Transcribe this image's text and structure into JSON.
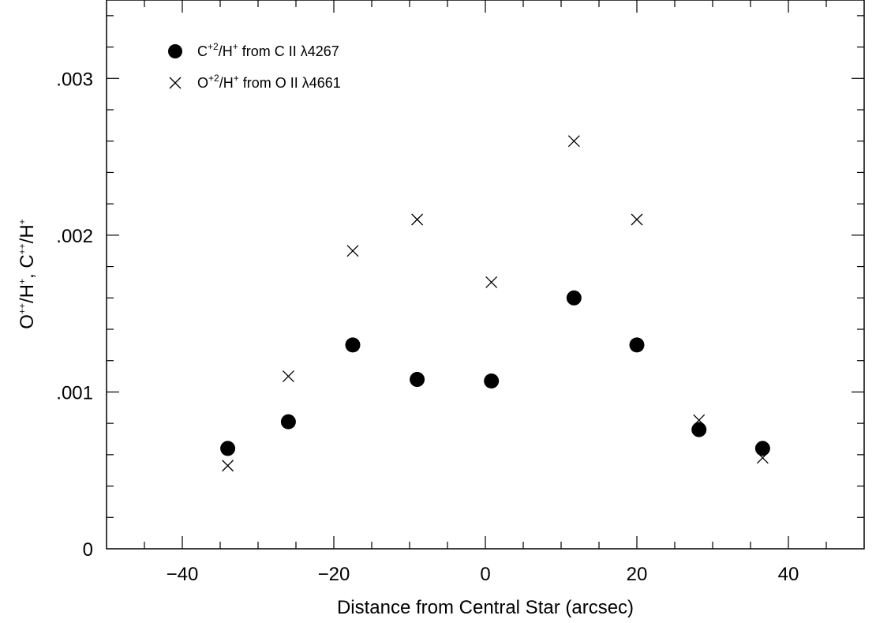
{
  "chart_data": {
    "type": "scatter",
    "title": "",
    "xlabel": "Distance from Central Star (arcsec)",
    "ylabel": {
      "prefix": "O",
      "sup1": "++",
      "mid1": "/H",
      "sup2": "+",
      "mid2": ", C",
      "sup3": "++",
      "mid3": "/H",
      "sup4": "+"
    },
    "xlim": [
      -50,
      50
    ],
    "ylim": [
      0,
      0.0035
    ],
    "x_ticks": [
      {
        "value": -40,
        "label": "−40"
      },
      {
        "value": -20,
        "label": "−20"
      },
      {
        "value": 0,
        "label": "0"
      },
      {
        "value": 20,
        "label": "20"
      },
      {
        "value": 40,
        "label": "40"
      }
    ],
    "y_ticks": [
      {
        "value": 0,
        "label": "0"
      },
      {
        "value": 0.001,
        "label": ".001"
      },
      {
        "value": 0.002,
        "label": ".002"
      },
      {
        "value": 0.003,
        "label": ".003"
      }
    ],
    "grid": false,
    "legend_position": "top-left",
    "series": [
      {
        "name": {
          "a": "C",
          "b": "+2",
          "c": "/H",
          "d": "+",
          "e": " from C II λ4267"
        },
        "marker": "filled-circle",
        "color": "#000000",
        "x": [
          -34,
          -26,
          -17.5,
          -9,
          0.8,
          11.7,
          20,
          28.2,
          36.6
        ],
        "y": [
          0.00064,
          0.00081,
          0.0013,
          0.00108,
          0.00107,
          0.0016,
          0.0013,
          0.00076,
          0.00064
        ]
      },
      {
        "name": {
          "a": "O",
          "b": "+2",
          "c": "/H",
          "d": "+",
          "e": " from O II λ4661"
        },
        "marker": "x",
        "color": "#000000",
        "x": [
          -34,
          -26,
          -17.5,
          -9,
          0.8,
          11.7,
          20,
          28.2,
          36.6
        ],
        "y": [
          0.00053,
          0.0011,
          0.0019,
          0.0021,
          0.0017,
          0.0026,
          0.0021,
          0.00082,
          0.00058
        ]
      }
    ]
  }
}
